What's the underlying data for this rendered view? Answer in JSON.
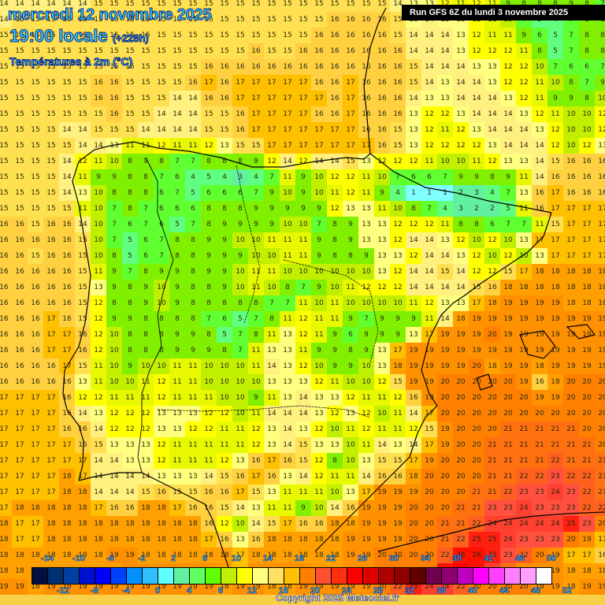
{
  "header": {
    "date": "mercredi 12 novembre 2025",
    "time": "19:00 locale",
    "lead": "(+228h)",
    "variable": "Températures à 2m (°C)",
    "run": "Run GFS 6Z du lundi 3 novembre 2025"
  },
  "footer": {
    "copyright": "Copyright 2025 Meteociel.fr"
  },
  "legend": {
    "colors": [
      "#001040",
      "#003070",
      "#0040a0",
      "#0010d0",
      "#0000ff",
      "#0040ff",
      "#0090ff",
      "#30c0ff",
      "#60ffff",
      "#60f0a0",
      "#60ff60",
      "#60ff00",
      "#c0f000",
      "#ffff00",
      "#ffff80",
      "#ffe060",
      "#ffc000",
      "#ff8000",
      "#ff5030",
      "#ff3010",
      "#ff0000",
      "#e00000",
      "#b00000",
      "#900000",
      "#600000",
      "#700050",
      "#900070",
      "#c000c0",
      "#ff00ff",
      "#ff40ff",
      "#ff80ff",
      "#ffa0ff",
      "#ffffff"
    ],
    "top_labels": [
      -14,
      -10,
      -6,
      -2,
      2,
      6,
      10,
      14,
      18,
      22,
      26,
      30,
      34,
      38,
      42,
      46,
      50
    ],
    "bottom_labels": [
      -12,
      -8,
      -4,
      0,
      4,
      8,
      12,
      16,
      20,
      24,
      28,
      32,
      36,
      40,
      44,
      48,
      52
    ]
  },
  "map": {
    "grid_origin": [
      5,
      5
    ],
    "grid_step": 20,
    "values": [
      [
        14,
        14,
        14,
        14,
        14,
        14,
        15,
        15,
        15,
        15,
        15,
        15,
        15,
        15,
        15,
        15,
        15,
        15,
        15,
        15,
        15,
        15,
        15,
        15,
        15,
        14,
        13,
        13,
        12,
        11,
        12,
        11,
        9,
        8,
        8,
        8,
        9,
        8,
        7
      ],
      [
        14,
        15,
        15,
        15,
        15,
        15,
        15,
        15,
        15,
        15,
        15,
        15,
        15,
        15,
        15,
        15,
        15,
        15,
        15,
        15,
        15,
        16,
        16,
        16,
        16,
        15,
        13,
        14,
        13,
        13,
        12,
        11,
        10,
        7,
        5,
        4,
        7,
        8,
        8
      ],
      [
        15,
        15,
        15,
        15,
        15,
        15,
        15,
        15,
        15,
        15,
        15,
        15,
        15,
        15,
        15,
        15,
        15,
        15,
        15,
        15,
        16,
        16,
        16,
        16,
        16,
        15,
        14,
        14,
        14,
        13,
        12,
        11,
        11,
        9,
        6,
        5,
        7,
        8,
        8
      ],
      [
        15,
        15,
        15,
        15,
        15,
        15,
        15,
        15,
        15,
        15,
        15,
        15,
        15,
        15,
        15,
        15,
        16,
        15,
        15,
        16,
        16,
        16,
        16,
        16,
        16,
        16,
        14,
        14,
        14,
        13,
        12,
        12,
        12,
        11,
        8,
        5,
        7,
        8,
        8
      ],
      [
        15,
        15,
        15,
        15,
        15,
        15,
        15,
        15,
        15,
        15,
        15,
        15,
        15,
        16,
        16,
        16,
        16,
        16,
        16,
        16,
        16,
        16,
        16,
        16,
        16,
        16,
        15,
        14,
        14,
        14,
        13,
        13,
        12,
        12,
        10,
        7,
        6,
        6,
        7
      ],
      [
        15,
        15,
        15,
        15,
        15,
        15,
        16,
        16,
        15,
        15,
        15,
        15,
        16,
        17,
        16,
        17,
        17,
        17,
        17,
        17,
        16,
        16,
        17,
        16,
        16,
        16,
        15,
        14,
        13,
        14,
        14,
        13,
        12,
        12,
        11,
        10,
        8,
        7,
        9
      ],
      [
        15,
        15,
        15,
        15,
        15,
        15,
        16,
        16,
        15,
        15,
        15,
        14,
        14,
        16,
        16,
        17,
        17,
        17,
        17,
        17,
        17,
        16,
        17,
        16,
        16,
        16,
        14,
        13,
        13,
        14,
        14,
        14,
        13,
        12,
        11,
        9,
        9,
        8,
        10
      ],
      [
        15,
        15,
        15,
        15,
        15,
        15,
        15,
        16,
        15,
        15,
        14,
        14,
        14,
        15,
        15,
        16,
        17,
        17,
        17,
        17,
        16,
        16,
        17,
        16,
        16,
        16,
        13,
        12,
        12,
        13,
        14,
        14,
        14,
        13,
        12,
        11,
        10,
        10,
        12
      ],
      [
        15,
        15,
        15,
        15,
        14,
        14,
        15,
        15,
        15,
        14,
        14,
        14,
        14,
        15,
        15,
        16,
        17,
        17,
        17,
        17,
        17,
        17,
        17,
        16,
        16,
        15,
        13,
        12,
        11,
        12,
        13,
        14,
        14,
        14,
        13,
        12,
        10,
        10,
        12
      ],
      [
        15,
        15,
        15,
        15,
        15,
        14,
        14,
        13,
        11,
        11,
        12,
        11,
        11,
        12,
        13,
        15,
        15,
        17,
        17,
        17,
        17,
        17,
        17,
        17,
        16,
        15,
        13,
        12,
        12,
        12,
        12,
        13,
        14,
        14,
        14,
        12,
        10,
        12,
        13
      ],
      [
        15,
        15,
        15,
        15,
        14,
        12,
        11,
        10,
        8,
        9,
        8,
        7,
        7,
        8,
        8,
        8,
        9,
        12,
        14,
        12,
        14,
        14,
        15,
        13,
        12,
        12,
        12,
        11,
        10,
        10,
        11,
        12,
        13,
        13,
        14,
        15,
        16,
        16,
        16
      ],
      [
        15,
        15,
        15,
        15,
        14,
        11,
        9,
        9,
        8,
        8,
        7,
        6,
        4,
        5,
        4,
        3,
        4,
        7,
        11,
        9,
        10,
        12,
        12,
        11,
        10,
        7,
        6,
        6,
        7,
        9,
        9,
        8,
        9,
        11,
        14,
        16,
        16,
        16,
        16
      ],
      [
        15,
        15,
        15,
        15,
        14,
        13,
        10,
        8,
        8,
        8,
        6,
        7,
        5,
        6,
        6,
        6,
        7,
        9,
        10,
        9,
        10,
        11,
        12,
        11,
        9,
        4,
        1,
        1,
        1,
        2,
        3,
        4,
        7,
        13,
        16,
        17,
        16,
        16,
        16
      ],
      [
        15,
        15,
        15,
        15,
        15,
        11,
        10,
        7,
        8,
        7,
        6,
        6,
        6,
        8,
        8,
        8,
        9,
        9,
        9,
        9,
        9,
        12,
        13,
        13,
        11,
        10,
        8,
        7,
        4,
        3,
        2,
        2,
        5,
        11,
        16,
        17,
        17,
        17,
        17
      ],
      [
        16,
        16,
        15,
        16,
        16,
        14,
        10,
        7,
        6,
        7,
        6,
        5,
        7,
        8,
        9,
        9,
        9,
        9,
        10,
        10,
        7,
        8,
        9,
        13,
        13,
        12,
        12,
        12,
        11,
        8,
        8,
        6,
        7,
        7,
        11,
        15,
        17,
        17,
        17
      ],
      [
        16,
        16,
        16,
        16,
        16,
        15,
        10,
        7,
        5,
        6,
        7,
        8,
        8,
        9,
        9,
        10,
        10,
        11,
        11,
        11,
        9,
        8,
        9,
        13,
        13,
        12,
        14,
        14,
        13,
        12,
        10,
        12,
        10,
        13,
        17,
        17,
        17,
        17,
        17
      ],
      [
        16,
        16,
        15,
        16,
        16,
        15,
        10,
        8,
        5,
        6,
        7,
        8,
        8,
        9,
        9,
        9,
        10,
        10,
        11,
        11,
        9,
        8,
        8,
        9,
        13,
        13,
        12,
        14,
        14,
        13,
        12,
        10,
        12,
        10,
        13,
        17,
        17,
        17,
        17
      ],
      [
        16,
        16,
        16,
        16,
        16,
        15,
        11,
        9,
        7,
        8,
        9,
        9,
        8,
        9,
        9,
        10,
        11,
        11,
        10,
        10,
        10,
        10,
        10,
        10,
        13,
        12,
        14,
        14,
        15,
        14,
        12,
        12,
        15,
        17,
        18,
        18,
        18,
        18,
        18
      ],
      [
        16,
        16,
        16,
        16,
        16,
        15,
        13,
        9,
        8,
        9,
        10,
        9,
        8,
        8,
        9,
        10,
        11,
        10,
        8,
        7,
        9,
        10,
        11,
        12,
        12,
        12,
        14,
        14,
        14,
        14,
        15,
        16,
        18,
        18,
        18,
        18,
        18,
        18,
        18
      ],
      [
        16,
        16,
        16,
        16,
        16,
        15,
        12,
        8,
        8,
        9,
        10,
        9,
        8,
        8,
        8,
        8,
        8,
        7,
        7,
        11,
        10,
        11,
        10,
        10,
        10,
        10,
        11,
        12,
        13,
        13,
        17,
        18,
        19,
        19,
        19,
        19,
        18,
        18,
        18
      ],
      [
        16,
        16,
        16,
        17,
        16,
        15,
        12,
        9,
        9,
        8,
        8,
        8,
        8,
        7,
        6,
        5,
        7,
        8,
        11,
        12,
        11,
        11,
        9,
        7,
        9,
        9,
        9,
        11,
        14,
        18,
        19,
        19,
        19,
        19,
        19,
        19,
        19,
        19,
        19
      ],
      [
        16,
        16,
        16,
        17,
        17,
        16,
        12,
        10,
        8,
        8,
        8,
        9,
        9,
        8,
        5,
        7,
        8,
        11,
        13,
        12,
        11,
        9,
        6,
        9,
        9,
        9,
        13,
        17,
        19,
        19,
        19,
        20,
        19,
        19,
        19,
        19,
        19,
        19,
        19
      ],
      [
        16,
        16,
        16,
        17,
        17,
        16,
        12,
        10,
        8,
        8,
        8,
        9,
        9,
        9,
        8,
        7,
        11,
        13,
        13,
        11,
        9,
        9,
        8,
        9,
        13,
        17,
        19,
        19,
        19,
        19,
        19,
        19,
        19,
        19,
        19,
        19,
        19,
        19,
        19
      ],
      [
        16,
        16,
        16,
        16,
        17,
        15,
        11,
        10,
        9,
        10,
        10,
        11,
        11,
        10,
        10,
        10,
        11,
        14,
        13,
        12,
        10,
        9,
        9,
        10,
        13,
        18,
        19,
        19,
        19,
        19,
        20,
        18,
        19,
        19,
        18,
        19,
        19,
        19,
        19
      ],
      [
        16,
        16,
        16,
        16,
        16,
        13,
        11,
        10,
        10,
        11,
        12,
        11,
        11,
        10,
        10,
        10,
        10,
        13,
        13,
        13,
        12,
        11,
        10,
        10,
        12,
        15,
        19,
        19,
        20,
        20,
        20,
        20,
        20,
        19,
        16,
        18,
        20,
        20,
        20
      ],
      [
        17,
        17,
        17,
        17,
        16,
        12,
        12,
        11,
        11,
        11,
        12,
        11,
        11,
        11,
        10,
        10,
        9,
        11,
        13,
        14,
        13,
        13,
        12,
        11,
        11,
        12,
        16,
        19,
        20,
        20,
        20,
        20,
        20,
        20,
        19,
        19,
        20,
        20,
        20
      ],
      [
        17,
        17,
        17,
        17,
        16,
        14,
        13,
        12,
        12,
        12,
        13,
        13,
        13,
        12,
        12,
        10,
        11,
        14,
        14,
        14,
        13,
        12,
        13,
        12,
        10,
        11,
        14,
        17,
        20,
        20,
        20,
        20,
        20,
        20,
        20,
        20,
        20,
        20,
        20
      ],
      [
        17,
        17,
        17,
        17,
        16,
        16,
        14,
        12,
        12,
        12,
        13,
        13,
        12,
        12,
        11,
        11,
        12,
        13,
        14,
        13,
        12,
        10,
        11,
        12,
        11,
        11,
        12,
        15,
        19,
        20,
        20,
        20,
        21,
        21,
        21,
        21,
        21,
        20,
        20
      ],
      [
        17,
        17,
        17,
        17,
        17,
        16,
        15,
        13,
        13,
        13,
        12,
        11,
        11,
        11,
        11,
        11,
        12,
        13,
        14,
        15,
        13,
        13,
        10,
        11,
        14,
        13,
        14,
        17,
        19,
        20,
        20,
        21,
        21,
        21,
        21,
        21,
        21,
        21,
        20
      ],
      [
        17,
        17,
        17,
        17,
        17,
        17,
        14,
        14,
        13,
        13,
        12,
        11,
        11,
        11,
        12,
        13,
        16,
        17,
        16,
        15,
        12,
        8,
        10,
        13,
        15,
        15,
        17,
        19,
        20,
        20,
        20,
        21,
        21,
        21,
        21,
        22,
        21,
        21,
        21
      ],
      [
        17,
        17,
        17,
        17,
        18,
        17,
        14,
        14,
        14,
        14,
        13,
        13,
        13,
        14,
        15,
        16,
        17,
        16,
        13,
        14,
        12,
        11,
        11,
        14,
        16,
        16,
        18,
        20,
        20,
        20,
        20,
        21,
        21,
        22,
        22,
        23,
        22,
        22,
        21
      ],
      [
        17,
        17,
        17,
        17,
        18,
        18,
        14,
        14,
        14,
        15,
        16,
        15,
        15,
        16,
        16,
        17,
        15,
        13,
        11,
        11,
        11,
        10,
        13,
        17,
        19,
        19,
        19,
        20,
        20,
        20,
        21,
        21,
        22,
        23,
        23,
        24,
        23,
        22,
        21
      ],
      [
        17,
        18,
        18,
        18,
        18,
        18,
        17,
        16,
        16,
        18,
        18,
        17,
        16,
        16,
        15,
        14,
        13,
        11,
        11,
        9,
        10,
        14,
        16,
        19,
        19,
        19,
        20,
        20,
        20,
        21,
        21,
        23,
        23,
        24,
        23,
        23,
        23,
        22,
        22
      ],
      [
        18,
        17,
        17,
        18,
        18,
        18,
        18,
        18,
        18,
        18,
        18,
        18,
        18,
        16,
        12,
        10,
        14,
        15,
        17,
        16,
        16,
        18,
        18,
        19,
        19,
        19,
        20,
        20,
        21,
        21,
        22,
        24,
        24,
        24,
        24,
        24,
        25,
        23,
        20
      ],
      [
        18,
        17,
        17,
        18,
        18,
        18,
        18,
        18,
        18,
        18,
        18,
        18,
        18,
        17,
        16,
        13,
        16,
        18,
        18,
        18,
        18,
        18,
        19,
        19,
        19,
        19,
        20,
        20,
        21,
        22,
        25,
        25,
        24,
        23,
        23,
        23,
        20,
        19,
        17
      ],
      [
        18,
        18,
        18,
        18,
        18,
        18,
        18,
        19,
        19,
        18,
        18,
        18,
        18,
        18,
        18,
        17,
        18,
        18,
        18,
        18,
        18,
        18,
        19,
        19,
        20,
        20,
        20,
        20,
        22,
        26,
        26,
        25,
        23,
        22,
        20,
        19,
        17,
        17,
        16
      ],
      [
        18,
        18,
        18,
        18,
        18,
        18,
        18,
        18,
        19,
        19,
        19,
        19,
        19,
        19,
        18,
        17,
        19,
        19,
        19,
        19,
        18,
        18,
        19,
        19,
        20,
        20,
        20,
        20,
        26,
        27,
        26,
        24,
        21,
        19,
        19,
        19,
        18,
        18,
        18
      ],
      [
        19,
        19,
        18,
        19,
        19,
        19,
        19,
        19,
        19,
        19,
        19,
        19,
        19,
        19,
        18,
        19,
        19,
        18,
        18,
        19,
        19,
        19,
        19,
        19,
        20,
        22,
        25,
        24,
        24,
        22,
        20,
        20,
        20,
        20,
        19,
        19,
        18,
        19,
        19
      ]
    ]
  }
}
